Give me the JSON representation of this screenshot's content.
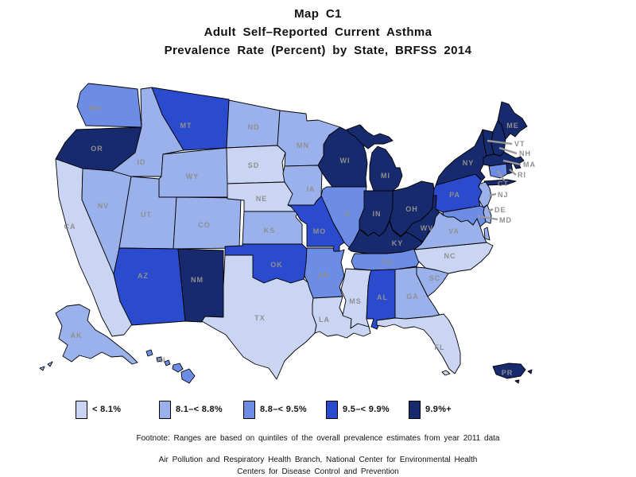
{
  "title": {
    "lines": [
      "Map C1",
      "Adult Self–Reported Current Asthma",
      "Prevalence Rate (Percent) by State, BRFSS 2014"
    ]
  },
  "legend": {
    "items": [
      {
        "label": "< 8.1%",
        "color": "#c9d5f2"
      },
      {
        "label": "8.1–< 8.8%",
        "color": "#9ab1ec"
      },
      {
        "label": "8.8–< 9.5%",
        "color": "#6d8de5"
      },
      {
        "label": "9.5–< 9.9%",
        "color": "#2b4bce"
      },
      {
        "label": "9.9%+",
        "color": "#182a6e"
      }
    ]
  },
  "footnote": "Footnote: Ranges are based on quintiles of the overall prevalence estimates from year 2011 data",
  "attribution": [
    "Air Pollution and Respiratory Health Branch, National Center for Environmental Health",
    "Centers for Disease Control and Prevention"
  ],
  "map": {
    "type": "choropleth",
    "unit": "percent of adults",
    "label_color": "#8f8f8f",
    "border_color": "#000000",
    "leader_line_color": "#999999",
    "states": [
      {
        "abbr": "WA",
        "class": 2
      },
      {
        "abbr": "OR",
        "class": 4
      },
      {
        "abbr": "CA",
        "class": 0
      },
      {
        "abbr": "NV",
        "class": 1
      },
      {
        "abbr": "ID",
        "class": 1
      },
      {
        "abbr": "MT",
        "class": 3
      },
      {
        "abbr": "WY",
        "class": 1
      },
      {
        "abbr": "UT",
        "class": 1
      },
      {
        "abbr": "CO",
        "class": 1
      },
      {
        "abbr": "AZ",
        "class": 3
      },
      {
        "abbr": "NM",
        "class": 4
      },
      {
        "abbr": "ND",
        "class": 1
      },
      {
        "abbr": "SD",
        "class": 0
      },
      {
        "abbr": "NE",
        "class": 0
      },
      {
        "abbr": "KS",
        "class": 1
      },
      {
        "abbr": "OK",
        "class": 3
      },
      {
        "abbr": "TX",
        "class": 0
      },
      {
        "abbr": "MN",
        "class": 1
      },
      {
        "abbr": "IA",
        "class": 1
      },
      {
        "abbr": "MO",
        "class": 3
      },
      {
        "abbr": "AR",
        "class": 2
      },
      {
        "abbr": "LA",
        "class": 0
      },
      {
        "abbr": "WI",
        "class": 4
      },
      {
        "abbr": "MI",
        "class": 4
      },
      {
        "abbr": "IL",
        "class": 2
      },
      {
        "abbr": "IN",
        "class": 4
      },
      {
        "abbr": "OH",
        "class": 4
      },
      {
        "abbr": "KY",
        "class": 4
      },
      {
        "abbr": "WV",
        "class": 4
      },
      {
        "abbr": "TN",
        "class": 2
      },
      {
        "abbr": "MS",
        "class": 0
      },
      {
        "abbr": "AL",
        "class": 3
      },
      {
        "abbr": "GA",
        "class": 1
      },
      {
        "abbr": "FL",
        "class": 0
      },
      {
        "abbr": "SC",
        "class": 1
      },
      {
        "abbr": "NC",
        "class": 0
      },
      {
        "abbr": "VA",
        "class": 1
      },
      {
        "abbr": "PA",
        "class": 3
      },
      {
        "abbr": "NY",
        "class": 4
      },
      {
        "abbr": "ME",
        "class": 4
      },
      {
        "abbr": "VT",
        "class": 4
      },
      {
        "abbr": "NH",
        "class": 4
      },
      {
        "abbr": "MA",
        "class": 4
      },
      {
        "abbr": "RI",
        "class": 4
      },
      {
        "abbr": "CT",
        "class": 2
      },
      {
        "abbr": "NJ",
        "class": 1
      },
      {
        "abbr": "DE",
        "class": 1
      },
      {
        "abbr": "MD",
        "class": 2
      },
      {
        "abbr": "AK",
        "class": 1
      },
      {
        "abbr": "HI",
        "class": 2
      },
      {
        "abbr": "PR",
        "class": 4
      }
    ]
  }
}
